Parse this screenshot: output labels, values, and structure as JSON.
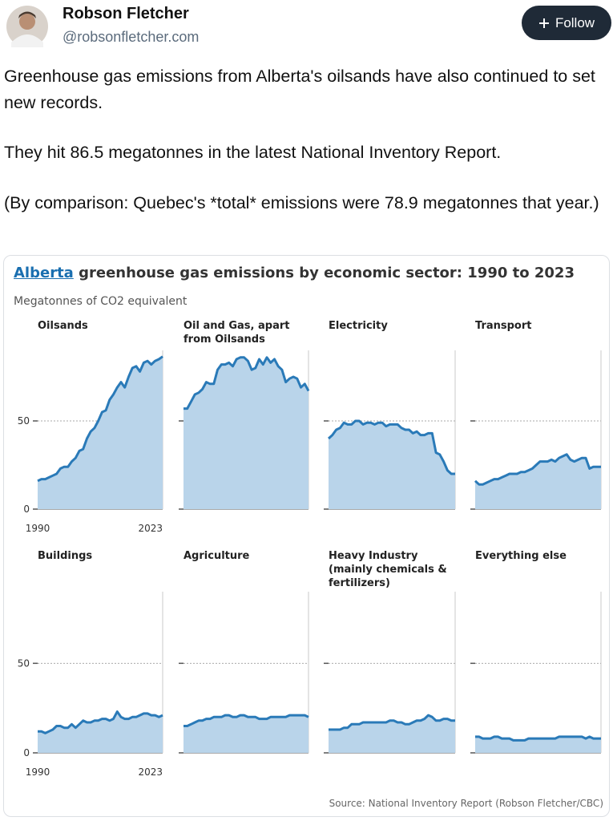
{
  "post": {
    "author": "Robson Fletcher",
    "handle": "@robsonfletcher.com",
    "follow": "Follow",
    "paragraphs": [
      "Greenhouse gas emissions from Alberta's oilsands have also continued to set new records.",
      "They hit 86.5 megatonnes in the latest National Inventory Report.",
      "(By comparison: Quebec's *total* emissions were 78.9 megatonnes that year.)"
    ]
  },
  "figure": {
    "title_link": "Alberta",
    "title": "greenhouse gas emissions by economic sector: 1990 to 2023",
    "subtitle": "Megatonnes of CO2 equivalent",
    "source": "Source: National Inventory Report (Robson Fletcher/CBC)"
  },
  "chart_data": [
    {
      "type": "area",
      "title": "Oilsands",
      "color": "#2a7ab8",
      "fill": "#b9d4ea",
      "x": [
        1990,
        1991,
        1992,
        1993,
        1994,
        1995,
        1996,
        1997,
        1998,
        1999,
        2000,
        2001,
        2002,
        2003,
        2004,
        2005,
        2006,
        2007,
        2008,
        2009,
        2010,
        2011,
        2012,
        2013,
        2014,
        2015,
        2016,
        2017,
        2018,
        2019,
        2020,
        2021,
        2022,
        2023
      ],
      "values": [
        16,
        17,
        17,
        18,
        19,
        20,
        23,
        24,
        24,
        27,
        29,
        33,
        34,
        40,
        44,
        46,
        50,
        55,
        56,
        62,
        65,
        69,
        72,
        69,
        75,
        80,
        81,
        78,
        83,
        84,
        82,
        84,
        85,
        86.5
      ],
      "xlim": [
        1990,
        2023
      ],
      "xticks": [
        1990,
        2023
      ],
      "ylim": [
        0,
        90
      ],
      "yticks": [
        0,
        50
      ]
    },
    {
      "type": "area",
      "title": "Oil and Gas, apart\nfrom Oilsands",
      "color": "#2a7ab8",
      "fill": "#b9d4ea",
      "x": [
        1990,
        1991,
        1992,
        1993,
        1994,
        1995,
        1996,
        1997,
        1998,
        1999,
        2000,
        2001,
        2002,
        2003,
        2004,
        2005,
        2006,
        2007,
        2008,
        2009,
        2010,
        2011,
        2012,
        2013,
        2014,
        2015,
        2016,
        2017,
        2018,
        2019,
        2020,
        2021,
        2022,
        2023
      ],
      "values": [
        57,
        57,
        61,
        65,
        66,
        68,
        72,
        71,
        71,
        79,
        82,
        82,
        83,
        81,
        85,
        86,
        86,
        84,
        79,
        80,
        85,
        82,
        86,
        83,
        85,
        81,
        79,
        72,
        74,
        75,
        74,
        69,
        71,
        67
      ],
      "xlim": [
        1990,
        2023
      ],
      "ylim": [
        0,
        90
      ],
      "yticks": [
        0,
        50
      ]
    },
    {
      "type": "area",
      "title": "Electricity",
      "color": "#2a7ab8",
      "fill": "#b9d4ea",
      "x": [
        1990,
        1991,
        1992,
        1993,
        1994,
        1995,
        1996,
        1997,
        1998,
        1999,
        2000,
        2001,
        2002,
        2003,
        2004,
        2005,
        2006,
        2007,
        2008,
        2009,
        2010,
        2011,
        2012,
        2013,
        2014,
        2015,
        2016,
        2017,
        2018,
        2019,
        2020,
        2021,
        2022,
        2023
      ],
      "values": [
        40,
        42,
        45,
        46,
        49,
        48,
        48,
        50,
        50,
        48,
        49,
        49,
        48,
        49,
        49,
        47,
        48,
        48,
        48,
        46,
        45,
        45,
        43,
        44,
        42,
        42,
        43,
        43,
        32,
        31,
        27,
        22,
        20,
        20
      ],
      "xlim": [
        1990,
        2023
      ],
      "ylim": [
        0,
        90
      ],
      "yticks": [
        0,
        50
      ]
    },
    {
      "type": "area",
      "title": "Transport",
      "color": "#2a7ab8",
      "fill": "#b9d4ea",
      "x": [
        1990,
        1991,
        1992,
        1993,
        1994,
        1995,
        1996,
        1997,
        1998,
        1999,
        2000,
        2001,
        2002,
        2003,
        2004,
        2005,
        2006,
        2007,
        2008,
        2009,
        2010,
        2011,
        2012,
        2013,
        2014,
        2015,
        2016,
        2017,
        2018,
        2019,
        2020,
        2021,
        2022,
        2023
      ],
      "values": [
        16,
        14,
        14,
        15,
        16,
        17,
        17,
        18,
        19,
        20,
        20,
        20,
        21,
        21,
        22,
        23,
        25,
        27,
        27,
        27,
        28,
        27,
        29,
        30,
        31,
        28,
        27,
        28,
        29,
        29,
        23,
        24,
        24,
        24
      ],
      "xlim": [
        1990,
        2023
      ],
      "ylim": [
        0,
        90
      ],
      "yticks": [
        0,
        50
      ]
    },
    {
      "type": "area",
      "title": "Buildings",
      "color": "#2a7ab8",
      "fill": "#b9d4ea",
      "x": [
        1990,
        1991,
        1992,
        1993,
        1994,
        1995,
        1996,
        1997,
        1998,
        1999,
        2000,
        2001,
        2002,
        2003,
        2004,
        2005,
        2006,
        2007,
        2008,
        2009,
        2010,
        2011,
        2012,
        2013,
        2014,
        2015,
        2016,
        2017,
        2018,
        2019,
        2020,
        2021,
        2022,
        2023
      ],
      "values": [
        12,
        12,
        11,
        12,
        13,
        15,
        15,
        14,
        14,
        16,
        14,
        16,
        18,
        17,
        17,
        18,
        18,
        19,
        19,
        18,
        19,
        23,
        20,
        19,
        19,
        20,
        20,
        21,
        22,
        22,
        21,
        21,
        20,
        21
      ],
      "xlim": [
        1990,
        2023
      ],
      "xticks": [
        1990,
        2023
      ],
      "ylim": [
        0,
        90
      ],
      "yticks": [
        0,
        50
      ]
    },
    {
      "type": "area",
      "title": "Agriculture",
      "color": "#2a7ab8",
      "fill": "#b9d4ea",
      "x": [
        1990,
        1991,
        1992,
        1993,
        1994,
        1995,
        1996,
        1997,
        1998,
        1999,
        2000,
        2001,
        2002,
        2003,
        2004,
        2005,
        2006,
        2007,
        2008,
        2009,
        2010,
        2011,
        2012,
        2013,
        2014,
        2015,
        2016,
        2017,
        2018,
        2019,
        2020,
        2021,
        2022,
        2023
      ],
      "values": [
        15,
        15,
        16,
        17,
        18,
        18,
        19,
        19,
        20,
        20,
        20,
        21,
        21,
        20,
        20,
        21,
        21,
        20,
        20,
        20,
        19,
        19,
        19,
        20,
        20,
        20,
        20,
        20,
        21,
        21,
        21,
        21,
        21,
        20
      ],
      "xlim": [
        1990,
        2023
      ],
      "ylim": [
        0,
        90
      ],
      "yticks": [
        0,
        50
      ]
    },
    {
      "type": "area",
      "title": "Heavy Industry\n(mainly chemicals &\nfertilizers)",
      "color": "#2a7ab8",
      "fill": "#b9d4ea",
      "x": [
        1990,
        1991,
        1992,
        1993,
        1994,
        1995,
        1996,
        1997,
        1998,
        1999,
        2000,
        2001,
        2002,
        2003,
        2004,
        2005,
        2006,
        2007,
        2008,
        2009,
        2010,
        2011,
        2012,
        2013,
        2014,
        2015,
        2016,
        2017,
        2018,
        2019,
        2020,
        2021,
        2022,
        2023
      ],
      "values": [
        13,
        13,
        13,
        13,
        14,
        14,
        16,
        16,
        16,
        17,
        17,
        17,
        17,
        17,
        17,
        17,
        18,
        18,
        17,
        17,
        16,
        16,
        17,
        18,
        18,
        19,
        21,
        20,
        18,
        18,
        19,
        19,
        18,
        18
      ],
      "xlim": [
        1990,
        2023
      ],
      "ylim": [
        0,
        90
      ],
      "yticks": [
        0,
        50
      ]
    },
    {
      "type": "area",
      "title": "Everything else",
      "color": "#2a7ab8",
      "fill": "#b9d4ea",
      "x": [
        1990,
        1991,
        1992,
        1993,
        1994,
        1995,
        1996,
        1997,
        1998,
        1999,
        2000,
        2001,
        2002,
        2003,
        2004,
        2005,
        2006,
        2007,
        2008,
        2009,
        2010,
        2011,
        2012,
        2013,
        2014,
        2015,
        2016,
        2017,
        2018,
        2019,
        2020,
        2021,
        2022,
        2023
      ],
      "values": [
        9,
        9,
        8,
        8,
        8,
        9,
        9,
        8,
        8,
        8,
        7,
        7,
        7,
        7,
        8,
        8,
        8,
        8,
        8,
        8,
        8,
        8,
        9,
        9,
        9,
        9,
        9,
        9,
        9,
        8,
        9,
        8,
        8,
        8
      ],
      "xlim": [
        1990,
        2023
      ],
      "ylim": [
        0,
        90
      ],
      "yticks": [
        0,
        50
      ]
    }
  ]
}
